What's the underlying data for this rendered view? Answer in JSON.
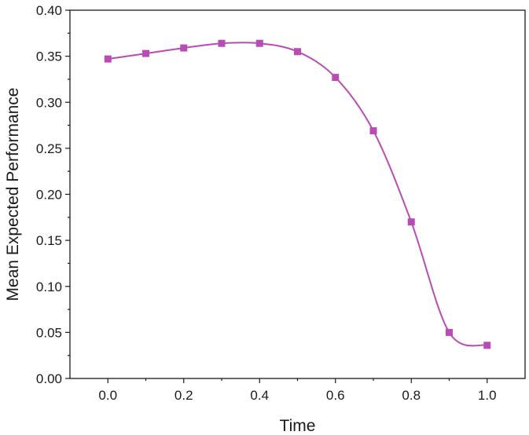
{
  "chart_data": {
    "type": "line",
    "title": "",
    "xlabel": "Time",
    "ylabel": "Mean Expected Performance",
    "xlim": [
      -0.1,
      1.1
    ],
    "ylim": [
      0.0,
      0.4
    ],
    "x_ticks": [
      "0.0",
      "0.2",
      "0.4",
      "0.6",
      "0.8",
      "1.0"
    ],
    "x_tick_values": [
      0.0,
      0.2,
      0.4,
      0.6,
      0.8,
      1.0
    ],
    "y_ticks": [
      "0.00",
      "0.05",
      "0.10",
      "0.15",
      "0.20",
      "0.25",
      "0.30",
      "0.35",
      "0.40"
    ],
    "y_tick_values": [
      0.0,
      0.05,
      0.1,
      0.15,
      0.2,
      0.25,
      0.3,
      0.35,
      0.4
    ],
    "grid": false,
    "legend": "none",
    "marker": "square",
    "smooth": true,
    "series": [
      {
        "color": "#b94bb4",
        "x": [
          0.0,
          0.1,
          0.2,
          0.3,
          0.4,
          0.5,
          0.6,
          0.7,
          0.8,
          0.9,
          1.0
        ],
        "y": [
          0.347,
          0.353,
          0.359,
          0.364,
          0.364,
          0.355,
          0.327,
          0.269,
          0.17,
          0.05,
          0.036
        ]
      }
    ]
  }
}
